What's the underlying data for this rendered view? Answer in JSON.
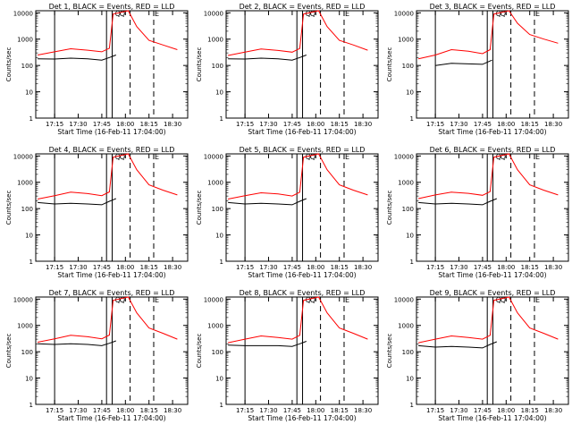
{
  "chart_data": [
    {
      "type": "line",
      "title": "Det 1, BLACK = Events, RED = LLD",
      "xlabel": "Start Time (16-Feb-11 17:04:00)",
      "ylabel": "Counts/sec",
      "x_ticks": [
        "17:15",
        "17:30",
        "17:45",
        "18:00",
        "18:15",
        "18:30"
      ],
      "y_ticks": [
        "1",
        "10",
        "100",
        "1000",
        "10000"
      ],
      "ylim": [
        1,
        12000
      ],
      "yscale": "log",
      "markers": [
        "Q",
        "Q",
        "E"
      ],
      "series": [
        {
          "name": "Events",
          "color": "#000000",
          "points": [
            [
              17.07,
              180
            ],
            [
              17.25,
              175
            ],
            [
              17.42,
              190
            ],
            [
              17.6,
              180
            ],
            [
              17.75,
              160
            ],
            [
              17.83,
              200
            ],
            [
              17.9,
              250
            ]
          ]
        },
        {
          "name": "LLD",
          "color": "#ff0000",
          "points": [
            [
              17.07,
              250
            ],
            [
              17.25,
              330
            ],
            [
              17.42,
              430
            ],
            [
              17.6,
              380
            ],
            [
              17.75,
              330
            ],
            [
              17.83,
              450
            ],
            [
              17.87,
              9000
            ],
            [
              18.03,
              12000
            ],
            [
              18.12,
              3000
            ],
            [
              18.25,
              900
            ],
            [
              18.4,
              600
            ],
            [
              18.55,
              400
            ]
          ]
        }
      ]
    },
    {
      "type": "line",
      "title": "Det 2, BLACK = Events, RED = LLD",
      "xlabel": "Start Time (16-Feb-11 17:04:00)",
      "ylabel": "Counts/sec",
      "x_ticks": [
        "17:15",
        "17:30",
        "17:45",
        "18:00",
        "18:15",
        "18:30"
      ],
      "y_ticks": [
        "1",
        "10",
        "100",
        "1000",
        "10000"
      ],
      "ylim": [
        1,
        12000
      ],
      "yscale": "log",
      "markers": [
        "Q",
        "Q",
        "E"
      ],
      "series": [
        {
          "name": "Events",
          "color": "#000000",
          "points": [
            [
              17.07,
              180
            ],
            [
              17.25,
              175
            ],
            [
              17.42,
              190
            ],
            [
              17.6,
              180
            ],
            [
              17.75,
              160
            ],
            [
              17.83,
              200
            ],
            [
              17.9,
              250
            ]
          ]
        },
        {
          "name": "LLD",
          "color": "#ff0000",
          "points": [
            [
              17.07,
              240
            ],
            [
              17.25,
              320
            ],
            [
              17.42,
              420
            ],
            [
              17.6,
              370
            ],
            [
              17.75,
              320
            ],
            [
              17.83,
              440
            ],
            [
              17.87,
              9000
            ],
            [
              18.03,
              12000
            ],
            [
              18.12,
              3000
            ],
            [
              18.25,
              900
            ],
            [
              18.4,
              600
            ],
            [
              18.55,
              380
            ]
          ]
        }
      ]
    },
    {
      "type": "line",
      "title": "Det 3, BLACK = Events, RED = LLD",
      "xlabel": "Start Time (16-Feb-11 17:04:00)",
      "ylabel": "Counts/sec",
      "x_ticks": [
        "17:15",
        "17:30",
        "17:45",
        "18:00",
        "18:15",
        "18:30"
      ],
      "y_ticks": [
        "1",
        "10",
        "100",
        "1000",
        "10000"
      ],
      "ylim": [
        1,
        12000
      ],
      "yscale": "log",
      "markers": [
        "Q",
        "Q",
        "E"
      ],
      "series": [
        {
          "name": "Events",
          "color": "#000000",
          "points": [
            [
              17.25,
              100
            ],
            [
              17.42,
              120
            ],
            [
              17.6,
              115
            ],
            [
              17.75,
              110
            ],
            [
              17.85,
              160
            ]
          ]
        },
        {
          "name": "LLD",
          "color": "#ff0000",
          "points": [
            [
              17.07,
              180
            ],
            [
              17.25,
              250
            ],
            [
              17.42,
              400
            ],
            [
              17.6,
              350
            ],
            [
              17.75,
              280
            ],
            [
              17.83,
              400
            ],
            [
              17.87,
              9000
            ],
            [
              18.03,
              12000
            ],
            [
              18.12,
              4000
            ],
            [
              18.25,
              1500
            ],
            [
              18.4,
              1000
            ],
            [
              18.55,
              700
            ]
          ]
        }
      ]
    },
    {
      "type": "line",
      "title": "Det 4, BLACK = Events, RED = LLD",
      "xlabel": "Start Time (16-Feb-11 17:04:00)",
      "ylabel": "Counts/sec",
      "x_ticks": [
        "17:15",
        "17:30",
        "17:45",
        "18:00",
        "18:15",
        "18:30"
      ],
      "y_ticks": [
        "1",
        "10",
        "100",
        "1000",
        "10000"
      ],
      "ylim": [
        1,
        12000
      ],
      "yscale": "log",
      "markers": [
        "Q",
        "Q",
        "E"
      ],
      "series": [
        {
          "name": "Events",
          "color": "#000000",
          "points": [
            [
              17.07,
              170
            ],
            [
              17.25,
              150
            ],
            [
              17.42,
              160
            ],
            [
              17.6,
              150
            ],
            [
              17.75,
              140
            ],
            [
              17.83,
              190
            ],
            [
              17.9,
              240
            ]
          ]
        },
        {
          "name": "LLD",
          "color": "#ff0000",
          "points": [
            [
              17.07,
              230
            ],
            [
              17.25,
              310
            ],
            [
              17.42,
              420
            ],
            [
              17.6,
              370
            ],
            [
              17.75,
              310
            ],
            [
              17.83,
              430
            ],
            [
              17.87,
              9000
            ],
            [
              18.03,
              12000
            ],
            [
              18.12,
              3000
            ],
            [
              18.25,
              800
            ],
            [
              18.4,
              500
            ],
            [
              18.55,
              330
            ]
          ]
        }
      ]
    },
    {
      "type": "line",
      "title": "Det 5, BLACK = Events, RED = LLD",
      "xlabel": "Start Time (16-Feb-11 17:04:00)",
      "ylabel": "Counts/sec",
      "x_ticks": [
        "17:15",
        "17:30",
        "17:45",
        "18:00",
        "18:15",
        "18:30"
      ],
      "y_ticks": [
        "1",
        "10",
        "100",
        "1000",
        "10000"
      ],
      "ylim": [
        1,
        12000
      ],
      "yscale": "log",
      "markers": [
        "Q",
        "Q",
        "E"
      ],
      "series": [
        {
          "name": "Events",
          "color": "#000000",
          "points": [
            [
              17.07,
              170
            ],
            [
              17.25,
              150
            ],
            [
              17.42,
              160
            ],
            [
              17.6,
              150
            ],
            [
              17.75,
              140
            ],
            [
              17.83,
              190
            ],
            [
              17.9,
              240
            ]
          ]
        },
        {
          "name": "LLD",
          "color": "#ff0000",
          "points": [
            [
              17.07,
              230
            ],
            [
              17.25,
              310
            ],
            [
              17.42,
              400
            ],
            [
              17.6,
              360
            ],
            [
              17.75,
              300
            ],
            [
              17.83,
              420
            ],
            [
              17.87,
              9000
            ],
            [
              18.03,
              12000
            ],
            [
              18.12,
              3000
            ],
            [
              18.25,
              800
            ],
            [
              18.4,
              500
            ],
            [
              18.55,
              330
            ]
          ]
        }
      ]
    },
    {
      "type": "line",
      "title": "Det 6, BLACK = Events, RED = LLD",
      "xlabel": "Start Time (16-Feb-11 17:04:00)",
      "ylabel": "Counts/sec",
      "x_ticks": [
        "17:15",
        "17:30",
        "17:45",
        "18:00",
        "18:15",
        "18:30"
      ],
      "y_ticks": [
        "1",
        "10",
        "100",
        "1000",
        "10000"
      ],
      "ylim": [
        1,
        12000
      ],
      "yscale": "log",
      "markers": [
        "Q",
        "Q",
        "E"
      ],
      "series": [
        {
          "name": "Events",
          "color": "#000000",
          "points": [
            [
              17.07,
              170
            ],
            [
              17.25,
              150
            ],
            [
              17.42,
              160
            ],
            [
              17.6,
              150
            ],
            [
              17.75,
              140
            ],
            [
              17.83,
              190
            ],
            [
              17.9,
              240
            ]
          ]
        },
        {
          "name": "LLD",
          "color": "#ff0000",
          "points": [
            [
              17.07,
              240
            ],
            [
              17.25,
              330
            ],
            [
              17.42,
              420
            ],
            [
              17.6,
              380
            ],
            [
              17.75,
              320
            ],
            [
              17.83,
              440
            ],
            [
              17.87,
              9000
            ],
            [
              18.03,
              12000
            ],
            [
              18.12,
              3000
            ],
            [
              18.25,
              800
            ],
            [
              18.4,
              500
            ],
            [
              18.55,
              330
            ]
          ]
        }
      ]
    },
    {
      "type": "line",
      "title": "Det 7, BLACK = Events, RED = LLD",
      "xlabel": "Start Time (16-Feb-11 17:04:00)",
      "ylabel": "Counts/sec",
      "x_ticks": [
        "17:15",
        "17:30",
        "17:45",
        "18:00",
        "18:15",
        "18:30"
      ],
      "y_ticks": [
        "1",
        "10",
        "100",
        "1000",
        "10000"
      ],
      "ylim": [
        1,
        12000
      ],
      "yscale": "log",
      "markers": [
        "Q",
        "Q",
        "E"
      ],
      "series": [
        {
          "name": "Events",
          "color": "#000000",
          "points": [
            [
              17.07,
              200
            ],
            [
              17.25,
              190
            ],
            [
              17.42,
              200
            ],
            [
              17.6,
              190
            ],
            [
              17.75,
              170
            ],
            [
              17.83,
              210
            ],
            [
              17.9,
              260
            ]
          ]
        },
        {
          "name": "LLD",
          "color": "#ff0000",
          "points": [
            [
              17.07,
              230
            ],
            [
              17.25,
              310
            ],
            [
              17.42,
              420
            ],
            [
              17.6,
              370
            ],
            [
              17.75,
              310
            ],
            [
              17.83,
              430
            ],
            [
              17.87,
              9000
            ],
            [
              18.03,
              12000
            ],
            [
              18.12,
              3000
            ],
            [
              18.25,
              800
            ],
            [
              18.4,
              500
            ],
            [
              18.55,
              300
            ]
          ]
        }
      ]
    },
    {
      "type": "line",
      "title": "Det 8, BLACK = Events, RED = LLD",
      "xlabel": "Start Time (16-Feb-11 17:04:00)",
      "ylabel": "Counts/sec",
      "x_ticks": [
        "17:15",
        "17:30",
        "17:45",
        "18:00",
        "18:15",
        "18:30"
      ],
      "y_ticks": [
        "1",
        "10",
        "100",
        "1000",
        "10000"
      ],
      "ylim": [
        1,
        12000
      ],
      "yscale": "log",
      "markers": [
        "Q",
        "Q",
        "E"
      ],
      "series": [
        {
          "name": "Events",
          "color": "#000000",
          "points": [
            [
              17.07,
              180
            ],
            [
              17.25,
              170
            ],
            [
              17.42,
              170
            ],
            [
              17.6,
              170
            ],
            [
              17.75,
              160
            ],
            [
              17.83,
              200
            ],
            [
              17.9,
              250
            ]
          ]
        },
        {
          "name": "LLD",
          "color": "#ff0000",
          "points": [
            [
              17.07,
              220
            ],
            [
              17.25,
              300
            ],
            [
              17.42,
              400
            ],
            [
              17.6,
              350
            ],
            [
              17.75,
              300
            ],
            [
              17.83,
              420
            ],
            [
              17.87,
              9000
            ],
            [
              18.03,
              12000
            ],
            [
              18.12,
              3000
            ],
            [
              18.25,
              800
            ],
            [
              18.4,
              500
            ],
            [
              18.55,
              300
            ]
          ]
        }
      ]
    },
    {
      "type": "line",
      "title": "Det 9, BLACK = Events, RED = LLD",
      "xlabel": "Start Time (16-Feb-11 17:04:00)",
      "ylabel": "Counts/sec",
      "x_ticks": [
        "17:15",
        "17:30",
        "17:45",
        "18:00",
        "18:15",
        "18:30"
      ],
      "y_ticks": [
        "1",
        "10",
        "100",
        "1000",
        "10000"
      ],
      "ylim": [
        1,
        12000
      ],
      "yscale": "log",
      "markers": [
        "Q",
        "Q",
        "E"
      ],
      "series": [
        {
          "name": "Events",
          "color": "#000000",
          "points": [
            [
              17.07,
              170
            ],
            [
              17.25,
              150
            ],
            [
              17.42,
              160
            ],
            [
              17.6,
              150
            ],
            [
              17.75,
              140
            ],
            [
              17.83,
              190
            ],
            [
              17.9,
              240
            ]
          ]
        },
        {
          "name": "LLD",
          "color": "#ff0000",
          "points": [
            [
              17.07,
              220
            ],
            [
              17.25,
              300
            ],
            [
              17.42,
              400
            ],
            [
              17.6,
              350
            ],
            [
              17.75,
              300
            ],
            [
              17.83,
              420
            ],
            [
              17.87,
              9000
            ],
            [
              18.03,
              12000
            ],
            [
              18.12,
              3000
            ],
            [
              18.25,
              800
            ],
            [
              18.4,
              500
            ],
            [
              18.55,
              300
            ]
          ]
        }
      ]
    }
  ]
}
